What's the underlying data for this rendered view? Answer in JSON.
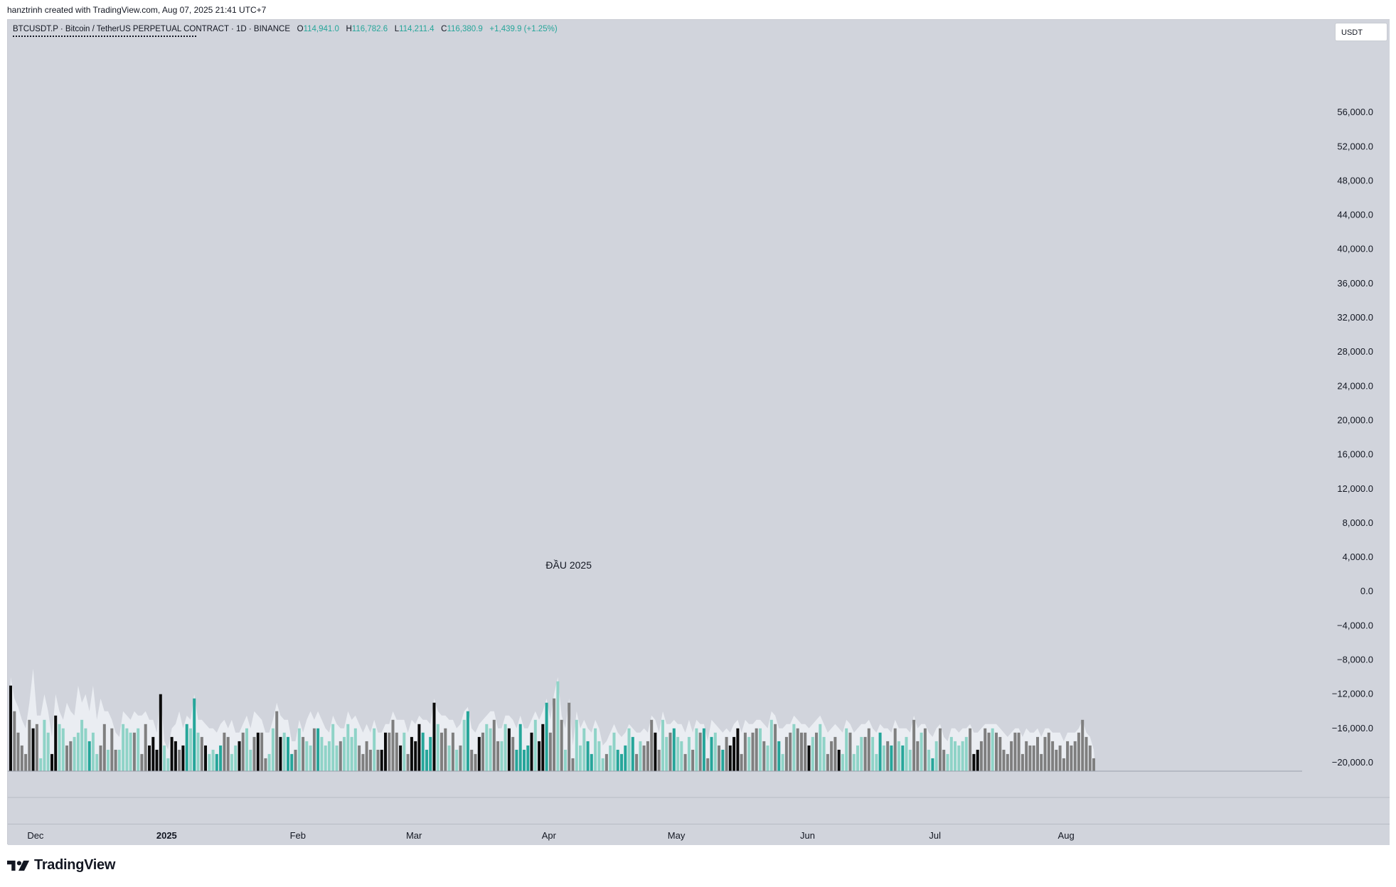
{
  "caption": "hanztrinh created with TradingView.com, Aug 07, 2025 21:41 UTC+7",
  "symbol": {
    "name": "BTCUSDT.P · Bitcoin / TetherUS PERPETUAL CONTRACT · 1D · BINANCE",
    "o_label": "O",
    "o": "114,941.0",
    "h_label": "H",
    "h": "116,782.6",
    "l_label": "L",
    "l": "114,211.4",
    "c_label": "C",
    "c": "116,380.9",
    "change": "+1,439.9 (+1.25%)"
  },
  "currency_button": "USDT",
  "brand": "TradingView",
  "colors": {
    "pane_bg": "#d1d4dc",
    "teal": "#26a69a",
    "light_teal": "#8fd3c7",
    "black": "#0b0b0b",
    "gray": "#7f7f7f",
    "band": "#eceff4"
  },
  "chart_data": {
    "type": "bar",
    "title": "",
    "annotation": {
      "text": "ĐẦU 2025",
      "x_index": 147
    },
    "y_ticks": [
      "56,000.0",
      "52,000.0",
      "48,000.0",
      "44,000.0",
      "40,000.0",
      "36,000.0",
      "32,000.0",
      "28,000.0",
      "24,000.0",
      "20,000.0",
      "16,000.0",
      "12,000.0",
      "8,000.0",
      "4,000.0",
      "0.0",
      "−4,000.0",
      "−8,000.0",
      "−12,000.0",
      "−16,000.0",
      "−20,000.0"
    ],
    "ylim": [
      -21000,
      60000
    ],
    "baseline": -21000,
    "x_ticks": [
      {
        "label": "Dec",
        "index": 7,
        "bold": false
      },
      {
        "label": "2025",
        "index": 42,
        "bold": true
      },
      {
        "label": "Feb",
        "index": 77,
        "bold": false
      },
      {
        "label": "Mar",
        "index": 108,
        "bold": false
      },
      {
        "label": "Apr",
        "index": 144,
        "bold": false
      },
      {
        "label": "May",
        "index": 178,
        "bold": false
      },
      {
        "label": "Jun",
        "index": 213,
        "bold": false
      },
      {
        "label": "Jul",
        "index": 247,
        "bold": false
      },
      {
        "label": "Aug",
        "index": 282,
        "bold": false
      }
    ],
    "bar_categories": [
      "teal",
      "light_teal",
      "black",
      "gray"
    ],
    "series": [
      {
        "name": "",
        "color_codes": "bgggggbglllkkllgglllltllgglggllllglggbbbbllkkgktltlgbllttggllbgllgbggllgklttglgllgtlllllgllllgggglgkkgggklgkkbtttklgglglgltggbgllggllkgttttklbbtgglglgglllttlllglltttltglgggkgllgtllglglgtgtlgtgkkbgglgglgllgtlgglgggklgllgggkllglllgglltlgtgltllgglgltlggllllllgkkggglgg",
        "values": [
          -11000,
          -14000,
          -16500,
          -18000,
          -19000,
          -15000,
          -16000,
          -15500,
          -19500,
          -15000,
          -16500,
          -19000,
          -14500,
          -15500,
          -16000,
          -18000,
          -17500,
          -17000,
          -16500,
          -15000,
          -16000,
          -17500,
          -16500,
          -19000,
          -18000,
          -15500,
          -18500,
          -16000,
          -18500,
          -18500,
          -15500,
          -16000,
          -16500,
          -16500,
          -16000,
          -19000,
          -15500,
          -18000,
          -17000,
          -18500,
          -12000,
          -18000,
          -19500,
          -17000,
          -17500,
          -18500,
          -18000,
          -15500,
          -16000,
          -12500,
          -16500,
          -17000,
          -18000,
          -19000,
          -18500,
          -19000,
          -18000,
          -16500,
          -17000,
          -19000,
          -18000,
          -17500,
          -16500,
          -16000,
          -18500,
          -17000,
          -16500,
          -16500,
          -19500,
          -19000,
          -16000,
          -14000,
          -17000,
          -16500,
          -17000,
          -19000,
          -18500,
          -16000,
          -17000,
          -17500,
          -18000,
          -16000,
          -16000,
          -17000,
          -18000,
          -17500,
          -15500,
          -18000,
          -17500,
          -17000,
          -15500,
          -17000,
          -16000,
          -18000,
          -19000,
          -17500,
          -18500,
          -16000,
          -18500,
          -18500,
          -16500,
          -16500,
          -15000,
          -16500,
          -18000,
          -16500,
          -19000,
          -17000,
          -17500,
          -15500,
          -16500,
          -18500,
          -17000,
          -13000,
          -15500,
          -16500,
          -16000,
          -18000,
          -16500,
          -18500,
          -18000,
          -15000,
          -14000,
          -18500,
          -19000,
          -17000,
          -16500,
          -15500,
          -16000,
          -15000,
          -17500,
          -17500,
          -15500,
          -16000,
          -17000,
          -18500,
          -15500,
          -18500,
          -18000,
          -16500,
          -15000,
          -17500,
          -15500,
          -13000,
          -16500,
          -12500,
          -10500,
          -15000,
          -18500,
          -13000,
          -19500,
          -15000,
          -18000,
          -16000,
          -17500,
          -19000,
          -16000,
          -17500,
          -19500,
          -19000,
          -18000,
          -16500,
          -18500,
          -19000,
          -18000,
          -16000,
          -17000,
          -19000,
          -17500,
          -18000,
          -17500,
          -15000,
          -16500,
          -18500,
          -15000,
          -17000,
          -16500,
          -16000,
          -17000,
          -17500,
          -19000,
          -17000,
          -18500,
          -16000,
          -16500,
          -16000,
          -19500,
          -17000,
          -16500,
          -18000,
          -18500,
          -17000,
          -18000,
          -17000,
          -16000,
          -19000,
          -16500,
          -17000,
          -16500,
          -16000,
          -16000,
          -17500,
          -18000,
          -15000,
          -15500,
          -17500,
          -19000,
          -17000,
          -16500,
          -15500,
          -16000,
          -16500,
          -16500,
          -18000,
          -17000,
          -16500,
          -15500,
          -17000,
          -19000,
          -17500,
          -17000,
          -18500,
          -19000,
          -16000,
          -16500,
          -19000,
          -18000,
          -17000,
          -17000,
          -16000,
          -17000,
          -19000,
          -16500,
          -18000,
          -17500,
          -18000,
          -16000,
          -17500,
          -18000,
          -17000,
          -18500,
          -15000,
          -17500,
          -16500,
          -16000,
          -18500,
          -19500,
          -17500,
          -16000,
          -18500,
          -19000,
          -17000,
          -17500,
          -18000,
          -17500,
          -17000,
          -16000,
          -19000,
          -18500,
          -17500,
          -16000,
          -16500,
          -16000,
          -16500,
          -17000,
          -18500,
          -19000,
          -17500,
          -16500,
          -16500,
          -19000,
          -17500,
          -18000,
          -18000,
          -17000,
          -19000,
          -17000,
          -16500,
          -17500,
          -18500,
          -18000,
          -19500,
          -17500,
          -18000,
          -17500,
          -16500,
          -15000,
          -17000,
          -18000,
          -19500
        ],
        "tops": [
          -10000,
          -12500,
          -13500,
          -15000,
          -16000,
          -13000,
          -9000,
          -14500,
          -14500,
          -12000,
          -14000,
          -17000,
          -12000,
          -14000,
          -15000,
          -13000,
          -14000,
          -14500,
          -11000,
          -13000,
          -12000,
          -14000,
          -11000,
          -15000,
          -12500,
          -14000,
          -14000,
          -15000,
          -16500,
          -17000,
          -14000,
          -14500,
          -15000,
          -14000,
          -14500,
          -14500,
          -14000,
          -15000,
          -15000,
          -16500,
          -12000,
          -17500,
          -18500,
          -16000,
          -15500,
          -14000,
          -16000,
          -14500,
          -15000,
          -12000,
          -15000,
          -15000,
          -15500,
          -16000,
          -16000,
          -16500,
          -15500,
          -15000,
          -16000,
          -15000,
          -16500,
          -16500,
          -15500,
          -14500,
          -16000,
          -14000,
          -14500,
          -15000,
          -16500,
          -16500,
          -15000,
          -13000,
          -14500,
          -15000,
          -15000,
          -17500,
          -17500,
          -15000,
          -16500,
          -15000,
          -14000,
          -15000,
          -14000,
          -15000,
          -16000,
          -16500,
          -14500,
          -15500,
          -16000,
          -16000,
          -14000,
          -15000,
          -14500,
          -15500,
          -16500,
          -15500,
          -16500,
          -15000,
          -16500,
          -16500,
          -15500,
          -15500,
          -14000,
          -15000,
          -15000,
          -15000,
          -16500,
          -15000,
          -15500,
          -14500,
          -15000,
          -15000,
          -15500,
          -12500,
          -14000,
          -14500,
          -14500,
          -15000,
          -15000,
          -16000,
          -15500,
          -14000,
          -13500,
          -16000,
          -16500,
          -15500,
          -15000,
          -14500,
          -14000,
          -14000,
          -16000,
          -16000,
          -14500,
          -14500,
          -15000,
          -16000,
          -14500,
          -16000,
          -16000,
          -15000,
          -14000,
          -15000,
          -14000,
          -12500,
          -15000,
          -12000,
          -10000,
          -14500,
          -16000,
          -12500,
          -18000,
          -14000,
          -16000,
          -15000,
          -16000,
          -16500,
          -15000,
          -16000,
          -18000,
          -17500,
          -16500,
          -15500,
          -16500,
          -17000,
          -16500,
          -15500,
          -16000,
          -16500,
          -16500,
          -16000,
          -16500,
          -14500,
          -15000,
          -16500,
          -14000,
          -15500,
          -15500,
          -15000,
          -15500,
          -15500,
          -16500,
          -15000,
          -16500,
          -15000,
          -15500,
          -15500,
          -17500,
          -15000,
          -15500,
          -16000,
          -16500,
          -16000,
          -16500,
          -15500,
          -15000,
          -16500,
          -15000,
          -15500,
          -15500,
          -15000,
          -15000,
          -15500,
          -16000,
          -14000,
          -14500,
          -16000,
          -16000,
          -15500,
          -15500,
          -14500,
          -15000,
          -15500,
          -15500,
          -16000,
          -15500,
          -15000,
          -14500,
          -15500,
          -16500,
          -16000,
          -15500,
          -16000,
          -16500,
          -15000,
          -15500,
          -16500,
          -16000,
          -15500,
          -15500,
          -15000,
          -16000,
          -16500,
          -15500,
          -16000,
          -16000,
          -16500,
          -15000,
          -16000,
          -16000,
          -16000,
          -16500,
          -14500,
          -16000,
          -15500,
          -15500,
          -16500,
          -17000,
          -16000,
          -15500,
          -17000,
          -17500,
          -16000,
          -16000,
          -16500,
          -16000,
          -16000,
          -15500,
          -16500,
          -16500,
          -16000,
          -15500,
          -15500,
          -15500,
          -15500,
          -16000,
          -16500,
          -17000,
          -16500,
          -16000,
          -16000,
          -17000,
          -16000,
          -16500,
          -16500,
          -16000,
          -17000,
          -16000,
          -16000,
          -16500,
          -16500,
          -16500,
          -17500,
          -16500,
          -16500,
          -16500,
          -16000,
          -15000,
          -16500,
          -17000,
          -18500
        ]
      }
    ]
  }
}
